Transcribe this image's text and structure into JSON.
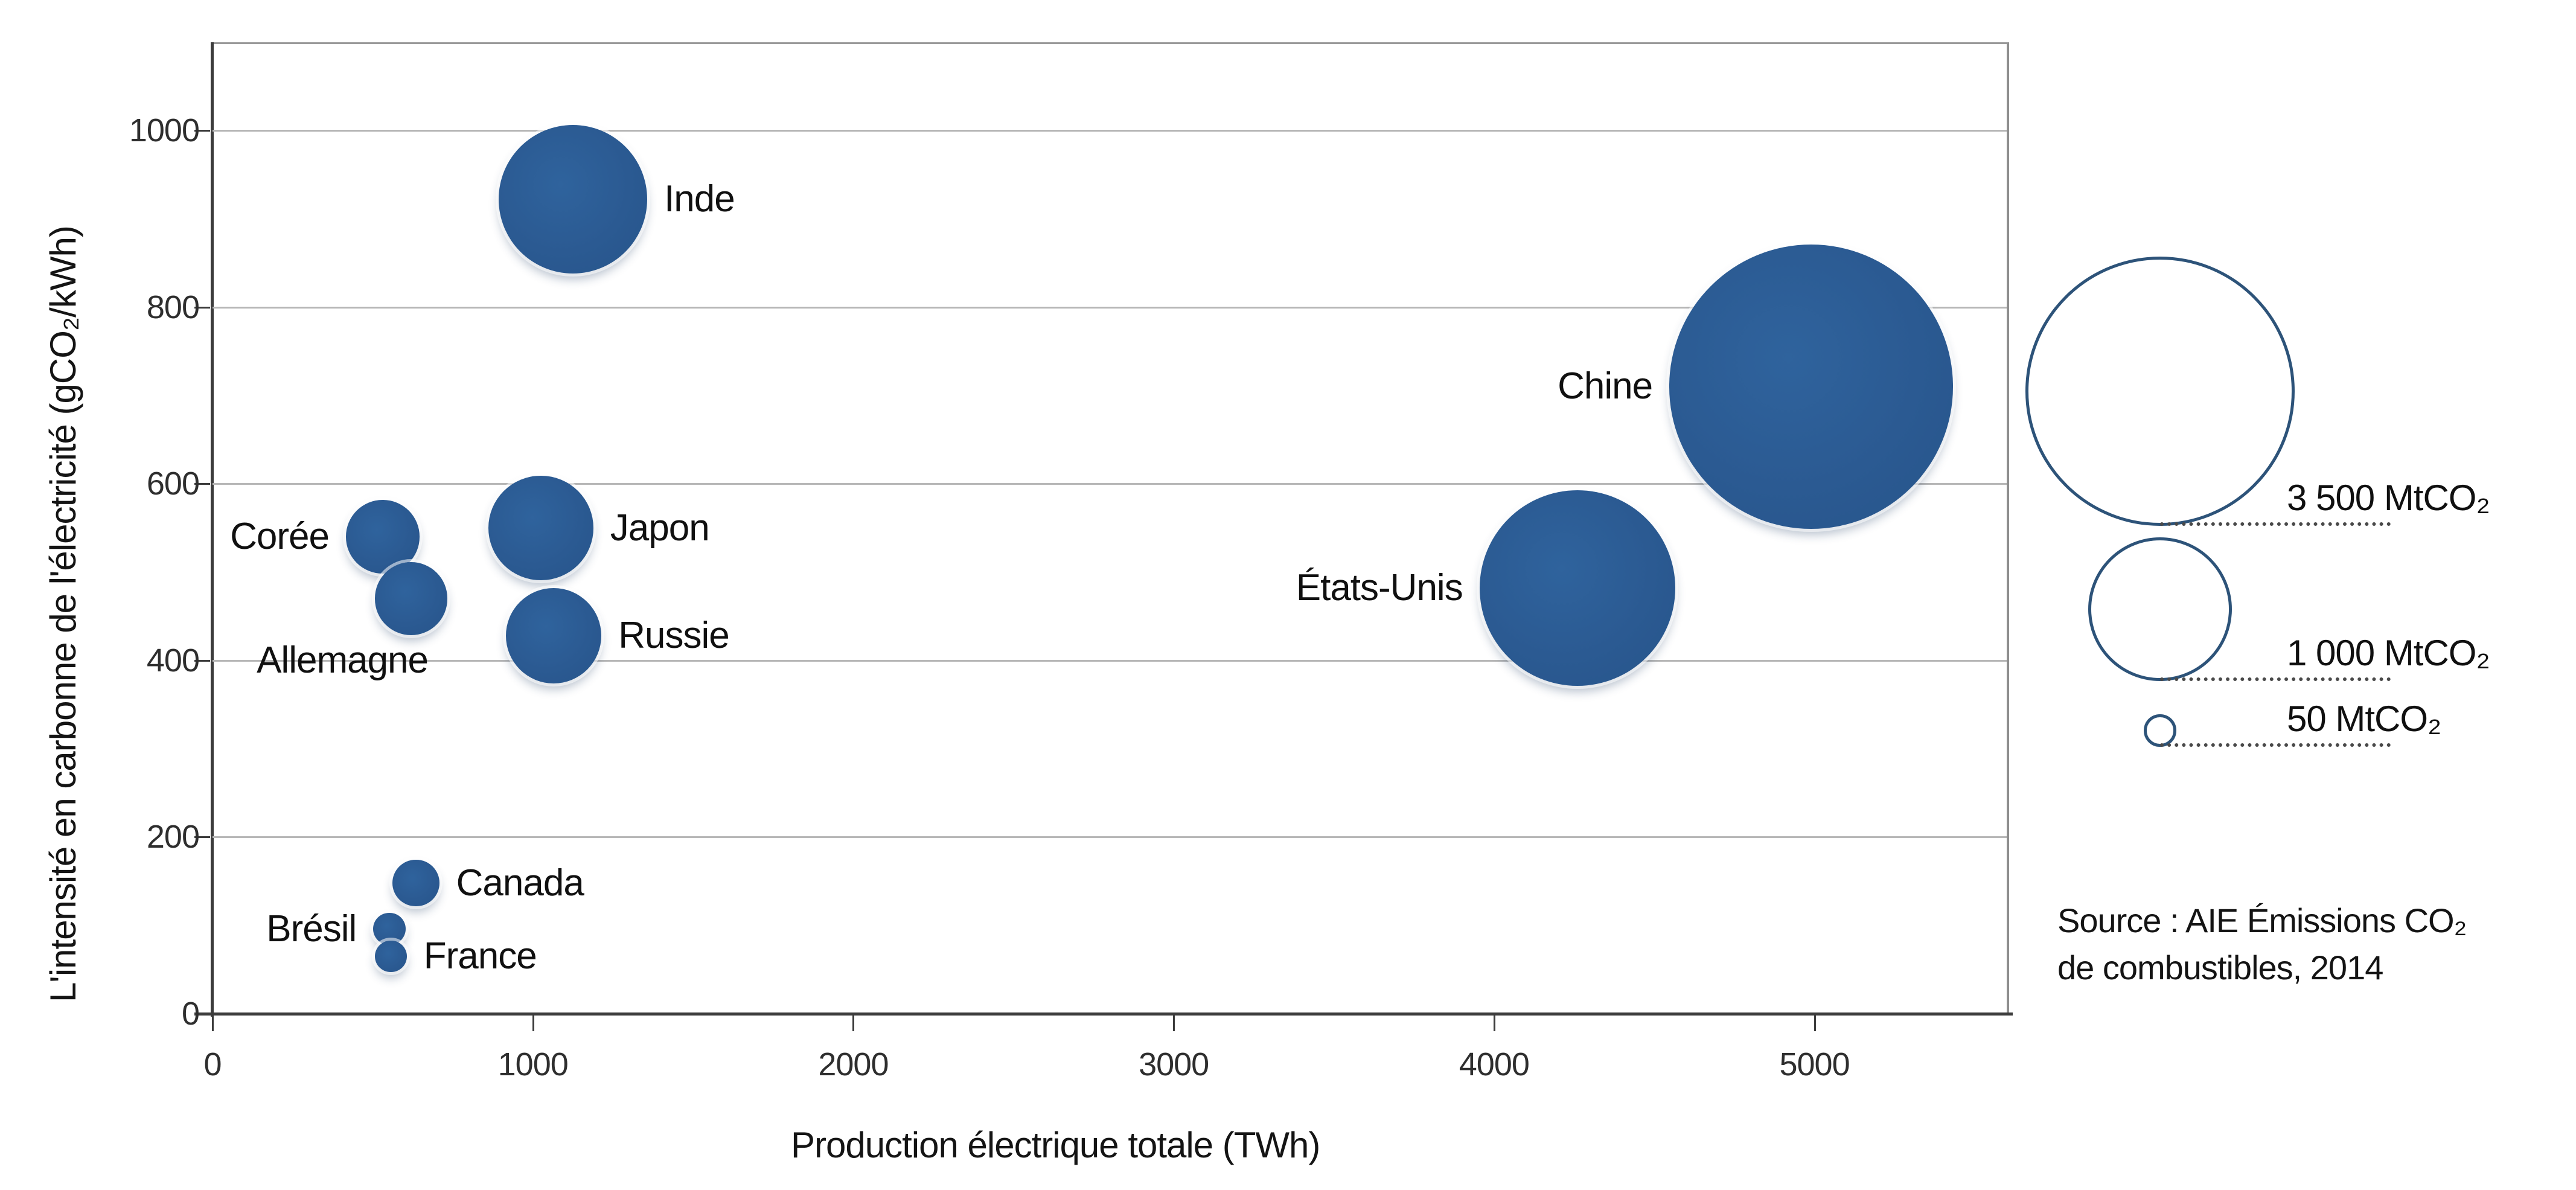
{
  "chart_data": {
    "type": "bubble",
    "title": "",
    "xlabel": "Production électrique totale (TWh)",
    "ylabel": "L'intensité en carbonne de l'électricité (gCO₂/kWh)",
    "xlim": [
      0,
      5600
    ],
    "ylim": [
      0,
      1100
    ],
    "xticks": [
      0,
      1000,
      2000,
      3000,
      4000,
      5000
    ],
    "yticks": [
      0,
      200,
      400,
      600,
      800,
      1000
    ],
    "grid": "horizontal-only",
    "legend_position": "right",
    "points": [
      {
        "name": "Inde",
        "x": 1125,
        "y": 922,
        "size_mtco2": 1065,
        "label_side": "right"
      },
      {
        "name": "Chine",
        "x": 4990,
        "y": 710,
        "size_mtco2": 3890,
        "label_side": "left"
      },
      {
        "name": "États-Unis",
        "x": 4260,
        "y": 482,
        "size_mtco2": 1850,
        "label_side": "left"
      },
      {
        "name": "Japon",
        "x": 1025,
        "y": 550,
        "size_mtco2": 530,
        "label_side": "right"
      },
      {
        "name": "Russie",
        "x": 1065,
        "y": 428,
        "size_mtco2": 440,
        "label_side": "right"
      },
      {
        "name": "Corée",
        "x": 531,
        "y": 540,
        "size_mtco2": 260,
        "label_side": "left"
      },
      {
        "name": "Allemagne",
        "x": 620,
        "y": 470,
        "size_mtco2": 255,
        "label_side": "below-left"
      },
      {
        "name": "Canada",
        "x": 635,
        "y": 148,
        "size_mtco2": 105,
        "label_side": "right"
      },
      {
        "name": "Brésil",
        "x": 552,
        "y": 96,
        "size_mtco2": 50,
        "label_side": "left"
      },
      {
        "name": "France",
        "x": 557,
        "y": 65,
        "size_mtco2": 48,
        "label_side": "right"
      }
    ],
    "size_legend": {
      "ref_value": 3500,
      "items": [
        {
          "label": "3 500 MtCO₂",
          "value": 3500
        },
        {
          "label": "1 000 MtCO₂",
          "value": 1000
        },
        {
          "label": "50 MtCO₂",
          "value": 50
        }
      ]
    },
    "source_line1": "Source : AIE Émissions CO₂",
    "source_line2": "de combustibles, 2014",
    "colors": {
      "bubble": "#2b5a92",
      "legend_stroke": "#2d5379",
      "grid": "#b7b7b7",
      "axis": "#3c3c3c",
      "text": "#111111"
    }
  }
}
